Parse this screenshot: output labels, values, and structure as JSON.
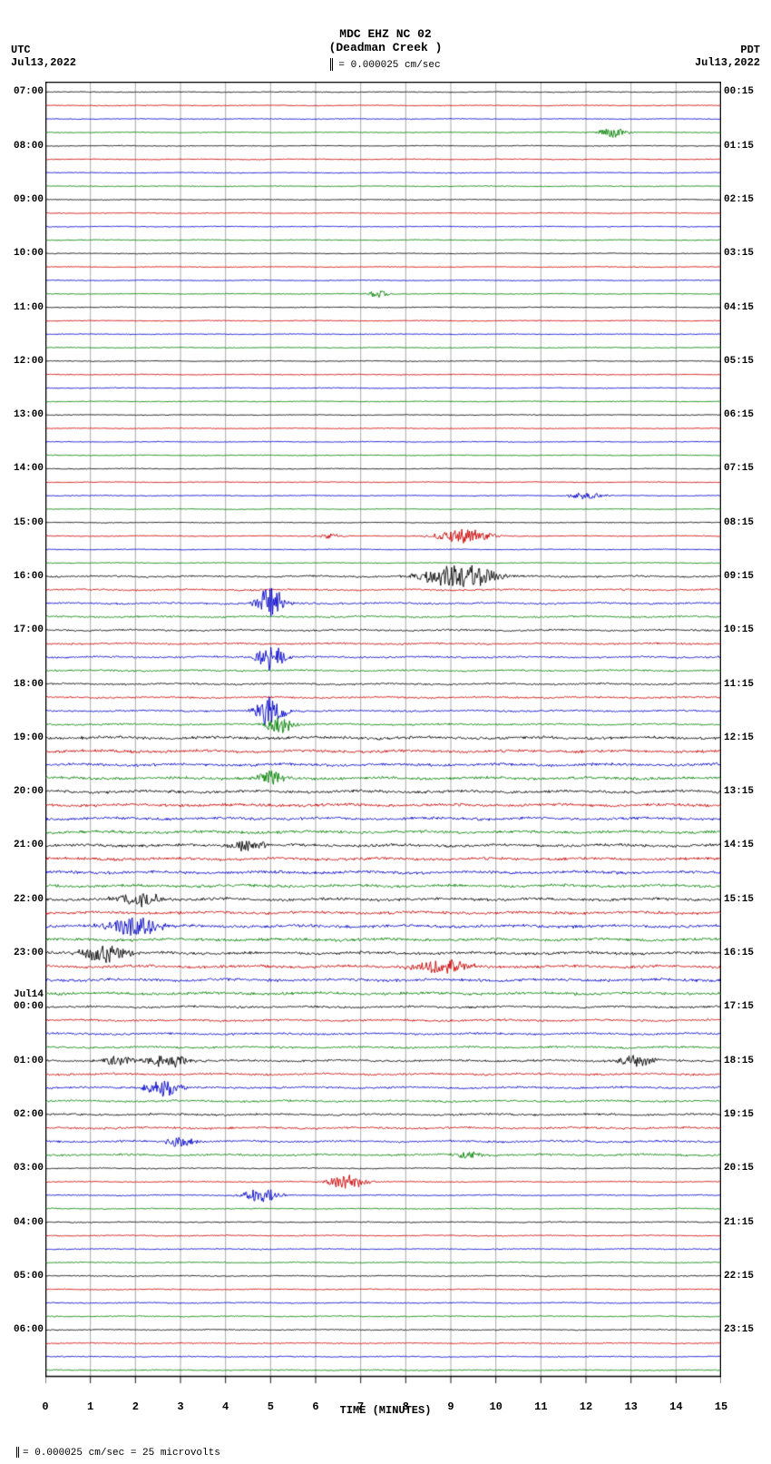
{
  "header": {
    "station": "MDC EHZ NC 02",
    "location": "(Deadman Creek )",
    "scale_text": "= 0.000025 cm/sec"
  },
  "tz_left": {
    "label": "UTC",
    "date": "Jul13,2022"
  },
  "tz_right": {
    "label": "PDT",
    "date": "Jul13,2022"
  },
  "footer": "= 0.000025 cm/sec =    25 microvolts",
  "x_axis": {
    "label": "TIME (MINUTES)",
    "min": 0,
    "max": 15,
    "tick_step": 1
  },
  "plot": {
    "type": "seismogram",
    "background_color": "#ffffff",
    "grid_color": "#aaaaaa",
    "frame_color": "#000000",
    "n_traces": 96,
    "trace_spacing": 1.0,
    "colors": [
      "#000000",
      "#cc0000",
      "#0000cc",
      "#008000"
    ],
    "left_hour_labels": [
      {
        "trace": 0,
        "text": "07:00"
      },
      {
        "trace": 4,
        "text": "08:00"
      },
      {
        "trace": 8,
        "text": "09:00"
      },
      {
        "trace": 12,
        "text": "10:00"
      },
      {
        "trace": 16,
        "text": "11:00"
      },
      {
        "trace": 20,
        "text": "12:00"
      },
      {
        "trace": 24,
        "text": "13:00"
      },
      {
        "trace": 28,
        "text": "14:00"
      },
      {
        "trace": 32,
        "text": "15:00"
      },
      {
        "trace": 36,
        "text": "16:00"
      },
      {
        "trace": 40,
        "text": "17:00"
      },
      {
        "trace": 44,
        "text": "18:00"
      },
      {
        "trace": 48,
        "text": "19:00"
      },
      {
        "trace": 52,
        "text": "20:00"
      },
      {
        "trace": 56,
        "text": "21:00"
      },
      {
        "trace": 60,
        "text": "22:00"
      },
      {
        "trace": 64,
        "text": "23:00"
      },
      {
        "trace": 68,
        "text": "00:00"
      },
      {
        "trace": 72,
        "text": "01:00"
      },
      {
        "trace": 76,
        "text": "02:00"
      },
      {
        "trace": 80,
        "text": "03:00"
      },
      {
        "trace": 84,
        "text": "04:00"
      },
      {
        "trace": 88,
        "text": "05:00"
      },
      {
        "trace": 92,
        "text": "06:00"
      }
    ],
    "left_date_labels": [
      {
        "trace": 68,
        "text": "Jul14"
      }
    ],
    "right_hour_labels": [
      {
        "trace": 0,
        "text": "00:15"
      },
      {
        "trace": 4,
        "text": "01:15"
      },
      {
        "trace": 8,
        "text": "02:15"
      },
      {
        "trace": 12,
        "text": "03:15"
      },
      {
        "trace": 16,
        "text": "04:15"
      },
      {
        "trace": 20,
        "text": "05:15"
      },
      {
        "trace": 24,
        "text": "06:15"
      },
      {
        "trace": 28,
        "text": "07:15"
      },
      {
        "trace": 32,
        "text": "08:15"
      },
      {
        "trace": 36,
        "text": "09:15"
      },
      {
        "trace": 40,
        "text": "10:15"
      },
      {
        "trace": 44,
        "text": "11:15"
      },
      {
        "trace": 48,
        "text": "12:15"
      },
      {
        "trace": 52,
        "text": "13:15"
      },
      {
        "trace": 56,
        "text": "14:15"
      },
      {
        "trace": 60,
        "text": "15:15"
      },
      {
        "trace": 64,
        "text": "16:15"
      },
      {
        "trace": 68,
        "text": "17:15"
      },
      {
        "trace": 72,
        "text": "18:15"
      },
      {
        "trace": 76,
        "text": "19:15"
      },
      {
        "trace": 80,
        "text": "20:15"
      },
      {
        "trace": 84,
        "text": "21:15"
      },
      {
        "trace": 88,
        "text": "22:15"
      },
      {
        "trace": 92,
        "text": "23:15"
      }
    ],
    "noise_amplitude_by_trace_group": [
      {
        "from": 0,
        "to": 35,
        "amp": 0.6
      },
      {
        "from": 36,
        "to": 47,
        "amp": 1.4
      },
      {
        "from": 48,
        "to": 67,
        "amp": 2.2
      },
      {
        "from": 68,
        "to": 79,
        "amp": 1.6
      },
      {
        "from": 80,
        "to": 95,
        "amp": 0.8
      }
    ],
    "events": [
      {
        "trace": 3,
        "x": 12.6,
        "width": 0.3,
        "amp": 6,
        "color_index": 3
      },
      {
        "trace": 15,
        "x": 7.4,
        "width": 0.2,
        "amp": 5,
        "color_index": 3
      },
      {
        "trace": 30,
        "x": 12.0,
        "width": 0.4,
        "amp": 4,
        "color_index": 2
      },
      {
        "trace": 33,
        "x": 6.3,
        "width": 0.3,
        "amp": 3,
        "color_index": 1
      },
      {
        "trace": 33,
        "x": 9.3,
        "width": 0.6,
        "amp": 8,
        "color_index": 1
      },
      {
        "trace": 36,
        "x": 9.2,
        "width": 0.8,
        "amp": 14,
        "color_index": 0
      },
      {
        "trace": 38,
        "x": 5.0,
        "width": 0.3,
        "amp": 18,
        "color_index": 2
      },
      {
        "trace": 42,
        "x": 5.0,
        "width": 0.3,
        "amp": 16,
        "color_index": 2
      },
      {
        "trace": 46,
        "x": 5.0,
        "width": 0.3,
        "amp": 20,
        "color_index": 2
      },
      {
        "trace": 47,
        "x": 5.2,
        "width": 0.3,
        "amp": 10,
        "color_index": 3
      },
      {
        "trace": 51,
        "x": 5.0,
        "width": 0.3,
        "amp": 8,
        "color_index": 3
      },
      {
        "trace": 56,
        "x": 4.5,
        "width": 0.4,
        "amp": 6,
        "color_index": 0
      },
      {
        "trace": 60,
        "x": 2.1,
        "width": 0.5,
        "amp": 8,
        "color_index": 0
      },
      {
        "trace": 62,
        "x": 2.0,
        "width": 0.6,
        "amp": 10,
        "color_index": 2
      },
      {
        "trace": 64,
        "x": 1.3,
        "width": 0.5,
        "amp": 10,
        "color_index": 0
      },
      {
        "trace": 65,
        "x": 8.8,
        "width": 0.6,
        "amp": 8,
        "color_index": 1
      },
      {
        "trace": 72,
        "x": 1.6,
        "width": 0.3,
        "amp": 6,
        "color_index": 0
      },
      {
        "trace": 72,
        "x": 2.7,
        "width": 0.5,
        "amp": 8,
        "color_index": 0
      },
      {
        "trace": 72,
        "x": 13.1,
        "width": 0.4,
        "amp": 7,
        "color_index": 0
      },
      {
        "trace": 74,
        "x": 2.6,
        "width": 0.4,
        "amp": 10,
        "color_index": 2
      },
      {
        "trace": 78,
        "x": 3.0,
        "width": 0.3,
        "amp": 6,
        "color_index": 2
      },
      {
        "trace": 81,
        "x": 6.7,
        "width": 0.4,
        "amp": 8,
        "color_index": 1
      },
      {
        "trace": 82,
        "x": 4.8,
        "width": 0.4,
        "amp": 8,
        "color_index": 2
      },
      {
        "trace": 79,
        "x": 9.4,
        "width": 0.3,
        "amp": 4,
        "color_index": 3
      }
    ]
  }
}
